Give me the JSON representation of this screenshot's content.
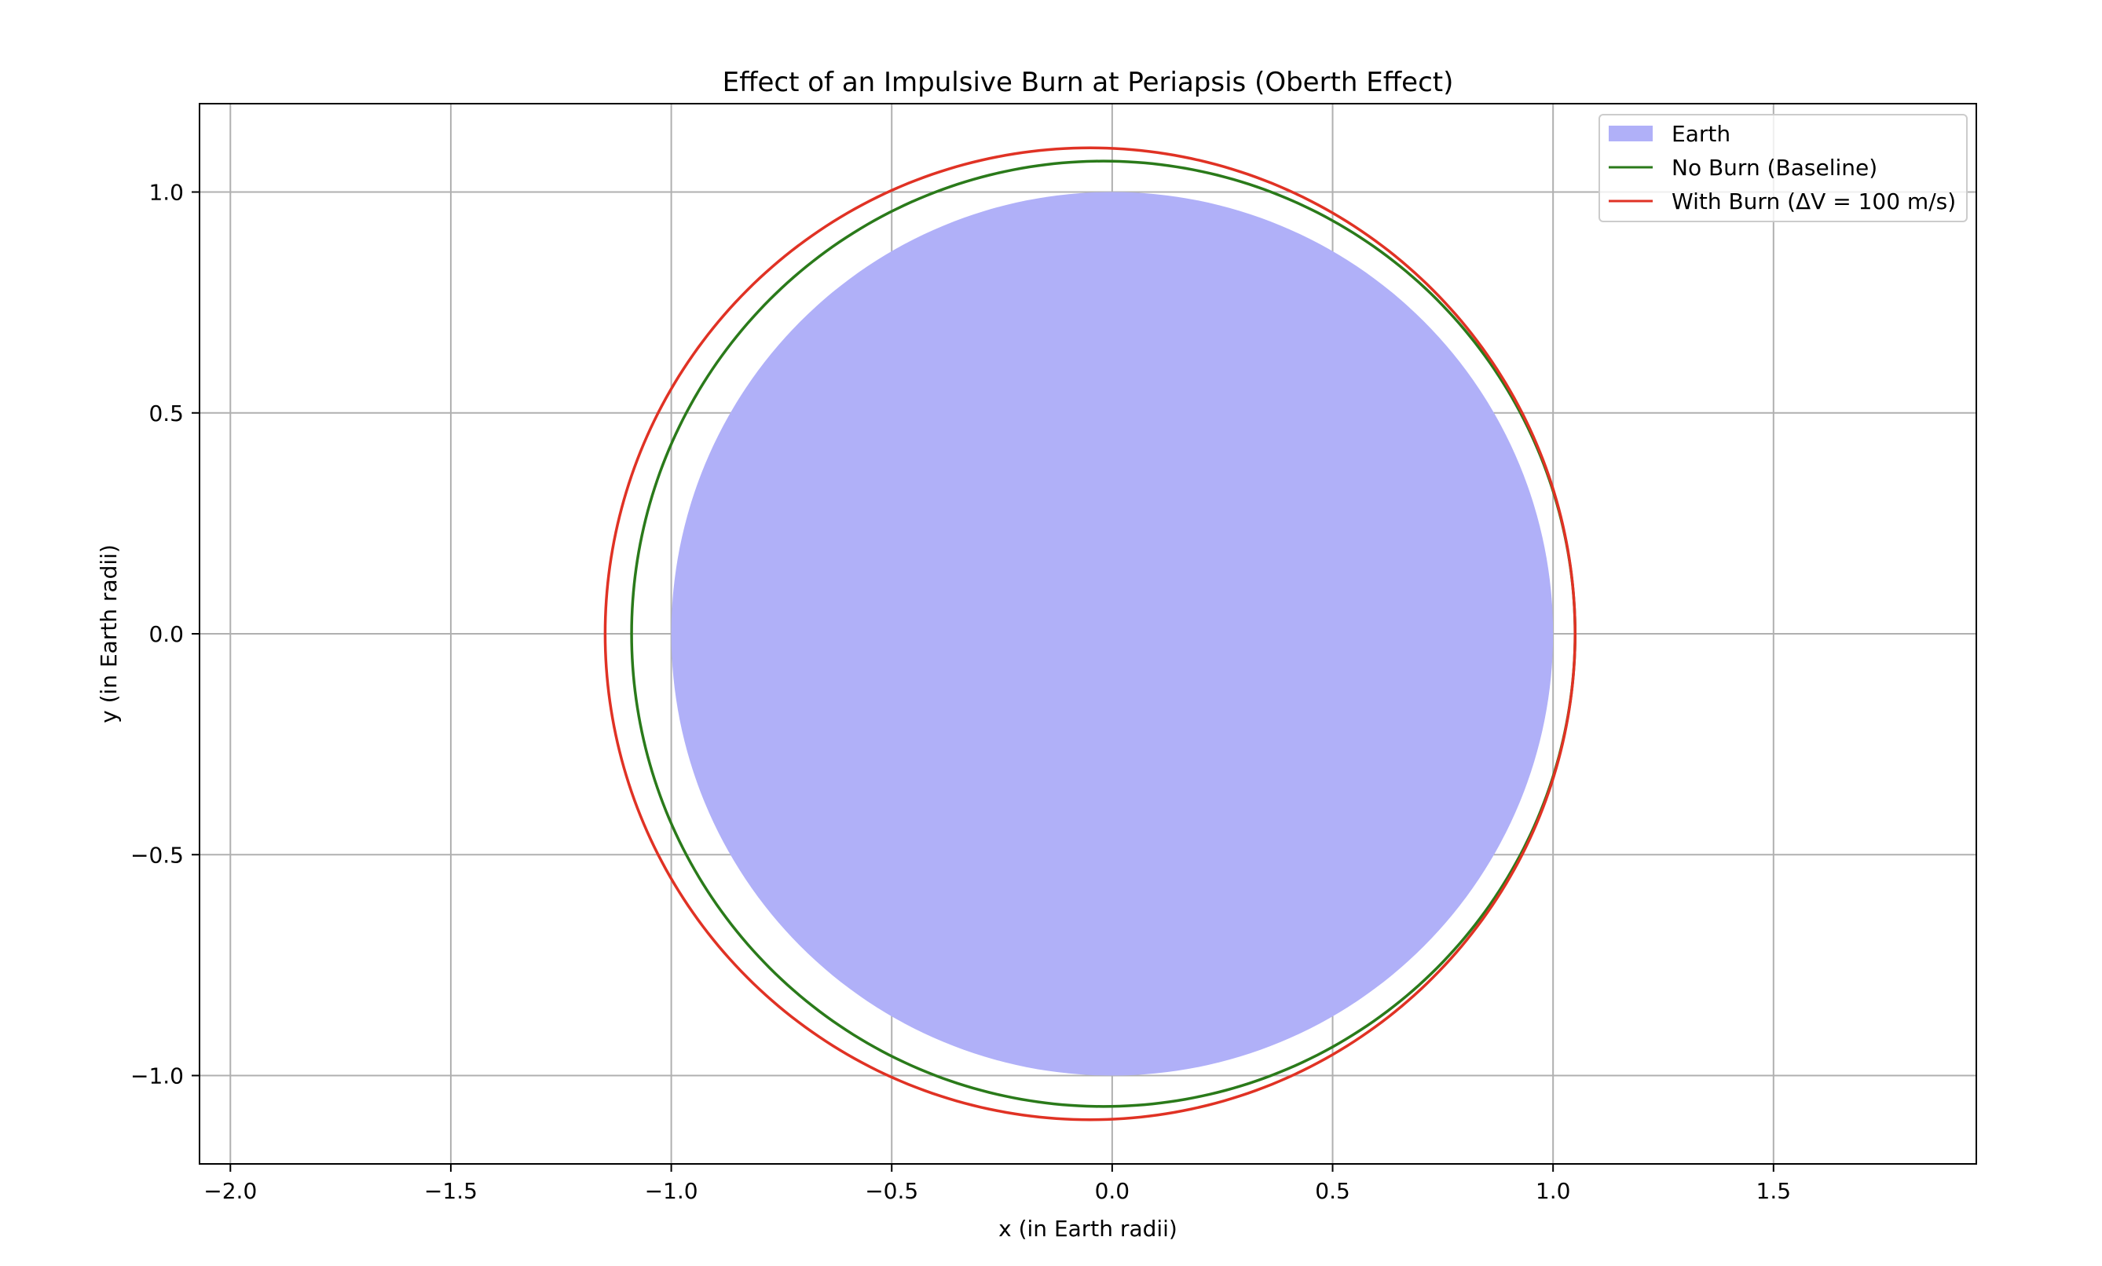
{
  "chart_data": {
    "type": "line",
    "title": "Effect of an Impulsive Burn at Periapsis (Oberth Effect)",
    "xlabel": "x (in Earth radii)",
    "ylabel": "y (in Earth radii)",
    "xlim": [
      -2.07,
      1.96
    ],
    "ylim": [
      -1.2,
      1.2
    ],
    "xticks": [
      -2.0,
      -1.5,
      -1.0,
      -0.5,
      0.0,
      0.5,
      1.0,
      1.5
    ],
    "xtick_labels": [
      "−2.0",
      "−1.5",
      "−1.0",
      "−0.5",
      "0.0",
      "0.5",
      "1.0",
      "1.5"
    ],
    "yticks": [
      -1.0,
      -0.5,
      0.0,
      0.5,
      1.0
    ],
    "ytick_labels": [
      "−1.0",
      "−0.5",
      "0.0",
      "0.5",
      "1.0"
    ],
    "grid": true,
    "legend_position": "top-right",
    "earth": {
      "name": "Earth",
      "center": [
        0,
        0
      ],
      "radius": 1.0,
      "color": "#b0b0f8"
    },
    "series": [
      {
        "name": "No Burn (Baseline)",
        "color": "#2a7a1a",
        "periapsis_x": 1.05,
        "apoapsis_x": -1.09,
        "semi_minor": 1.07
      },
      {
        "name": "With Burn (ΔV = 100 m/s)",
        "color": "#e03224",
        "periapsis_x": 1.05,
        "apoapsis_x": -1.15,
        "semi_minor": 1.1
      }
    ]
  }
}
